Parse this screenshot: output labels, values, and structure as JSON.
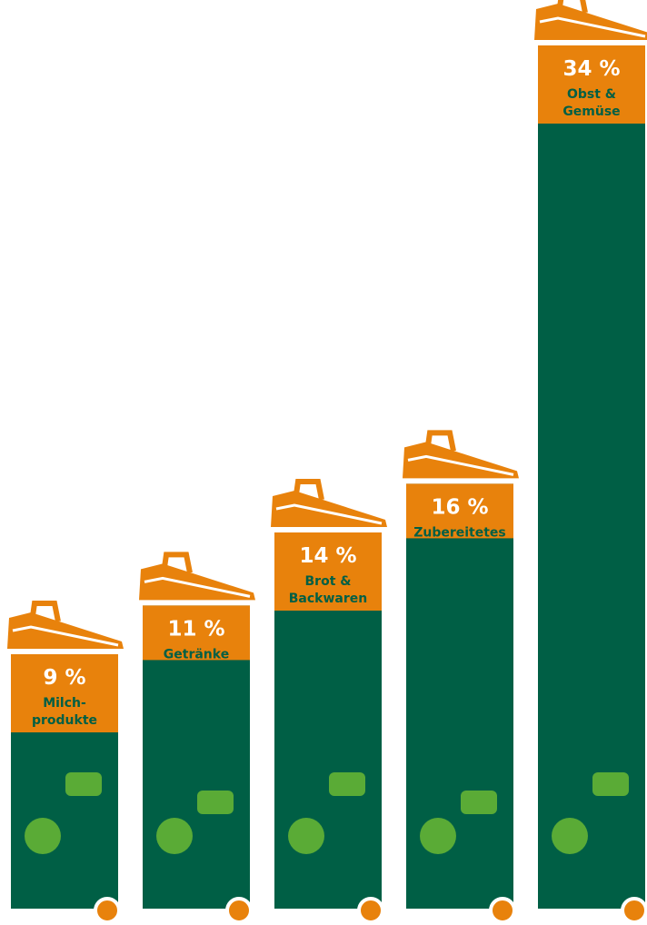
{
  "chart_data": {
    "type": "bar",
    "categories": [
      [
        "Milch-",
        "produkte"
      ],
      [
        "Getränke"
      ],
      [
        "Brot &",
        "Backwaren"
      ],
      [
        "Zubereitetes"
      ],
      [
        "Obst &",
        "Gemüse"
      ]
    ],
    "values": [
      9,
      11,
      14,
      16,
      34
    ],
    "value_labels": [
      "9 %",
      "11 %",
      "14 %",
      "16 %",
      "34 %"
    ],
    "color": "#005f45",
    "header_color": "#e8820c"
  }
}
